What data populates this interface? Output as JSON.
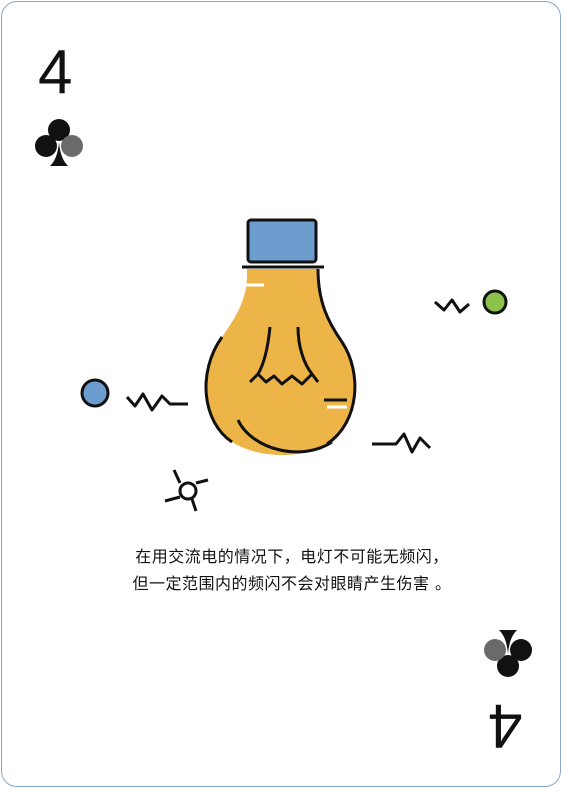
{
  "card": {
    "rank": "4",
    "suit_icon": "club-icon",
    "caption_lines": [
      "在用交流电的情况下，电灯不可能无频闪，",
      "但一定范围内的频闪不会对眼睛产生伤害 。"
    ]
  },
  "colors": {
    "bulb": "#EDB447",
    "cap": "#6D9CCF",
    "ink": "#111111",
    "dot_blue": "#6D9CCF",
    "dot_green": "#8BC34A",
    "border": "#8AA6C8"
  }
}
